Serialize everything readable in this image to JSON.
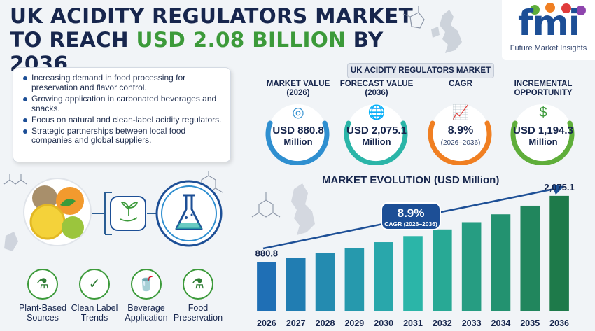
{
  "header": {
    "title_line1": "UK ACIDITY REGULATORS MARKET",
    "title_line2_a": "TO REACH ",
    "title_line2_b": "USD 2.08 BILLION",
    "title_line2_c": " BY 2036"
  },
  "logo": {
    "mark": "fmi",
    "subtitle": "Future Market Insights"
  },
  "bullets": [
    "Increasing demand in food processing for preservation and flavor control.",
    "Growing application in carbonated beverages and snacks.",
    "Focus on natural and clean-label acidity regulators.",
    "Strategic partnerships between local food companies and global suppliers."
  ],
  "metrics": {
    "section_label": "UK ACIDITY REGULATORS MARKET",
    "items": [
      {
        "title_a": "MARKET VALUE",
        "title_b": "(2026)",
        "value": "USD 880.8",
        "sub": "Million",
        "icon": "coins-icon",
        "color": "#2f8fd0"
      },
      {
        "title_a": "FORECAST VALUE",
        "title_b": "(2036)",
        "value": "USD 2,075.1",
        "sub": "Million",
        "icon": "globe-icon",
        "color": "#2bb5a8"
      },
      {
        "title_a": "CAGR",
        "title_b": "",
        "value": "8.9%",
        "sub": "(2026–2036)",
        "icon": "growth-chart-icon",
        "color": "#f07f22"
      },
      {
        "title_a": "INCREMENTAL",
        "title_b": "OPPORTUNITY",
        "value": "USD 1,194.3",
        "sub": "Million",
        "icon": "money-bag-icon",
        "color": "#5fae3a"
      }
    ]
  },
  "bottom_icons": [
    {
      "label_a": "Plant-Based",
      "label_b": "Sources",
      "icon": "flask-leaf-icon"
    },
    {
      "label_a": "Clean Label",
      "label_b": "Trends",
      "icon": "clipboard-check-icon"
    },
    {
      "label_a": "Beverage",
      "label_b": "Application",
      "icon": "drink-icon"
    },
    {
      "label_a": "Food",
      "label_b": "Preservation",
      "icon": "beaker-icon"
    }
  ],
  "chart_data": {
    "type": "bar",
    "title": "MARKET EVOLUTION (USD Million)",
    "categories": [
      "2026",
      "2027",
      "2028",
      "2029",
      "2030",
      "2031",
      "2032",
      "2033",
      "2034",
      "2035",
      "2036"
    ],
    "values": [
      880.8,
      959.2,
      1044.6,
      1137.6,
      1238.8,
      1349.0,
      1469.0,
      1599.7,
      1742.1,
      1897.1,
      2075.1
    ],
    "data_labels": {
      "first": "880.8",
      "last": "2,075.1"
    },
    "annotation": {
      "value": "8.9%",
      "text": "CAGR (2026–2036)"
    },
    "ylim": [
      0,
      2200
    ],
    "colors": {
      "start": "#1f6fb5",
      "mid": "#2bb5a8",
      "end": "#1e7a4a"
    }
  }
}
